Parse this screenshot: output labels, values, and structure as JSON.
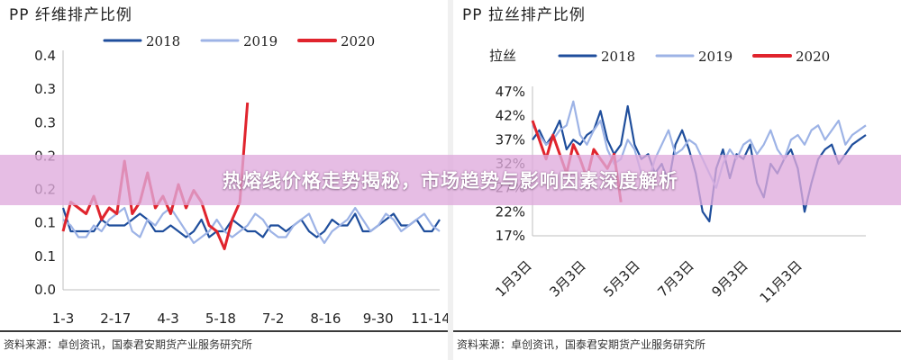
{
  "banner": {
    "headline": "热熔线价格走势揭秘，市场趋势与影响因素深度解析"
  },
  "chart_data": [
    {
      "type": "line",
      "title": "PP 纤维排产比例",
      "source": "资料来源：卓创资讯，国泰君安期货产业服务研究所",
      "y_tick_labels": [
        "0.4",
        "0.3",
        "0.3",
        "0.2",
        "0.2",
        "0.1",
        "0.1",
        "0.0"
      ],
      "ylim": [
        0,
        0.4
      ],
      "x_tick_labels": [
        "1-3",
        "2-17",
        "4-3",
        "5-18",
        "7-2",
        "8-16",
        "9-30",
        "11-14"
      ],
      "n_weeks": 50,
      "grid": false,
      "legend_position": "top-center",
      "series": [
        {
          "name": "2018",
          "color": "#1f4e9c",
          "values": [
            0.14,
            0.1,
            0.1,
            0.1,
            0.1,
            0.12,
            0.11,
            0.11,
            0.11,
            0.12,
            0.13,
            0.12,
            0.1,
            0.1,
            0.11,
            0.1,
            0.09,
            0.1,
            0.12,
            0.09,
            0.1,
            0.1,
            0.12,
            0.11,
            0.1,
            0.1,
            0.09,
            0.11,
            0.11,
            0.1,
            0.11,
            0.12,
            0.1,
            0.09,
            0.1,
            0.12,
            0.11,
            0.11,
            0.13,
            0.1,
            0.1,
            0.11,
            0.12,
            0.13,
            0.11,
            0.11,
            0.12,
            0.1,
            0.1,
            0.12
          ]
        },
        {
          "name": "2019",
          "color": "#9db3e6",
          "values": [
            0.12,
            0.11,
            0.09,
            0.09,
            0.11,
            0.1,
            0.12,
            0.13,
            0.14,
            0.1,
            0.09,
            0.12,
            0.11,
            0.13,
            0.14,
            0.12,
            0.1,
            0.08,
            0.09,
            0.1,
            0.12,
            0.1,
            0.09,
            0.1,
            0.11,
            0.13,
            0.12,
            0.1,
            0.09,
            0.09,
            0.11,
            0.12,
            0.13,
            0.1,
            0.08,
            0.1,
            0.11,
            0.12,
            0.14,
            0.12,
            0.1,
            0.11,
            0.13,
            0.12,
            0.1,
            0.11,
            0.12,
            0.13,
            0.11,
            0.1
          ]
        },
        {
          "name": "2020",
          "color": "#e0242d",
          "values": [
            0.1,
            0.15,
            0.14,
            0.13,
            0.16,
            0.12,
            0.14,
            0.13,
            0.22,
            0.13,
            0.15,
            0.2,
            0.14,
            0.16,
            0.13,
            0.18,
            0.14,
            0.17,
            0.15,
            0.11,
            0.1,
            0.07,
            0.12,
            0.15,
            0.32
          ]
        }
      ]
    },
    {
      "type": "line",
      "title": "PP 拉丝排产比例",
      "inner_label": "拉丝",
      "source": "资料来源：卓创资讯，国泰君安期货产业服务研究所",
      "y_tick_labels": [
        "47%",
        "42%",
        "37%",
        "32%",
        "27%",
        "22%",
        "17%"
      ],
      "ylim": [
        17,
        47
      ],
      "x_tick_labels": [
        "1月3日",
        "3月3日",
        "5月3日",
        "7月3日",
        "9月3日",
        "11月3日"
      ],
      "n_weeks": 50,
      "grid": false,
      "legend_position": "top-center",
      "series": [
        {
          "name": "2018",
          "color": "#1f4e9c",
          "values": [
            37,
            39,
            36,
            38,
            41,
            35,
            37,
            36,
            38,
            39,
            43,
            37,
            34,
            36,
            44,
            36,
            33,
            34,
            30,
            32,
            28,
            36,
            39,
            35,
            30,
            22,
            20,
            31,
            35,
            29,
            34,
            33,
            36,
            28,
            25,
            32,
            30,
            33,
            35,
            31,
            22,
            28,
            33,
            35,
            36,
            32,
            34,
            36,
            37,
            38
          ]
        },
        {
          "name": "2019",
          "color": "#9db3e6",
          "values": [
            40,
            38,
            36,
            37,
            39,
            40,
            45,
            38,
            36,
            39,
            41,
            35,
            32,
            33,
            37,
            35,
            30,
            28,
            33,
            36,
            39,
            34,
            35,
            37,
            36,
            33,
            30,
            27,
            32,
            35,
            33,
            36,
            37,
            34,
            36,
            39,
            35,
            33,
            37,
            38,
            36,
            39,
            40,
            37,
            39,
            41,
            36,
            38,
            39,
            40
          ]
        },
        {
          "name": "2020",
          "color": "#e0242d",
          "values": [
            41,
            37,
            33,
            38,
            34,
            30,
            36,
            33,
            29,
            35,
            33,
            31,
            34,
            24
          ]
        }
      ]
    }
  ]
}
